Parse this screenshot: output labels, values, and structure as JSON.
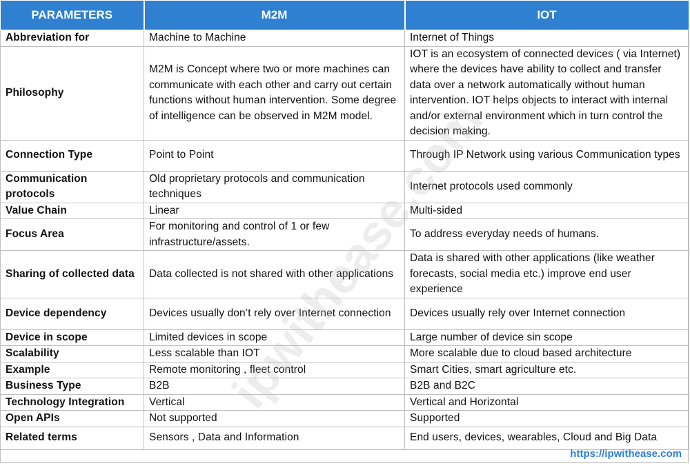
{
  "table": {
    "header": [
      "PARAMETERS",
      "M2M",
      "IOT"
    ],
    "rows": [
      [
        "Abbreviation for",
        "Machine to Machine",
        "Internet of Things"
      ],
      [
        "Philosophy",
        "M2M is Concept where two or more machines can communicate with each other and carry out certain functions without human intervention. Some degree of intelligence can be observed  in M2M model.",
        "IOT is an ecosystem of connected devices ( via Internet) where the devices have ability to collect and transfer data over a network automatically without human intervention. IOT helps objects to interact with internal and/or external environment which in turn control the decision making."
      ],
      [
        "Connection Type",
        "Point to Point",
        "Through IP Network using various Communication types"
      ],
      [
        "Communication protocols",
        "Old proprietary protocols and communication techniques",
        "Internet protocols used commonly"
      ],
      [
        "Value Chain",
        "Linear",
        "Multi-sided"
      ],
      [
        "Focus Area",
        "For monitoring and control of 1 or few infrastructure/assets.",
        "To address everyday needs of humans."
      ],
      [
        "Sharing of collected data",
        "Data collected is not shared with other applications",
        "Data is shared with other applications (like weather forecasts, social media etc.) improve end user experience"
      ],
      [
        "Device dependency",
        "Devices usually don’t rely over Internet connection",
        "Devices usually rely over Internet connection"
      ],
      [
        "Device in scope",
        "Limited devices in scope",
        "Large number of device sin scope"
      ],
      [
        "Scalability",
        "Less scalable than IOT",
        "More scalable due to cloud based architecture"
      ],
      [
        "Example",
        "Remote monitoring , fleet control",
        "Smart Cities, smart agriculture etc."
      ],
      [
        "Business Type",
        "B2B",
        "B2B and B2C"
      ],
      [
        "Technology Integration",
        "Vertical",
        "Vertical and Horizontal"
      ],
      [
        "Open APIs",
        "Not supported",
        "Supported"
      ],
      [
        "Related terms",
        "Sensors , Data and Information",
        "End users, devices, wearables, Cloud  and Big Data"
      ]
    ]
  },
  "watermark": "ipwithease.com",
  "footer": {
    "url": "https://ipwithease.com"
  }
}
